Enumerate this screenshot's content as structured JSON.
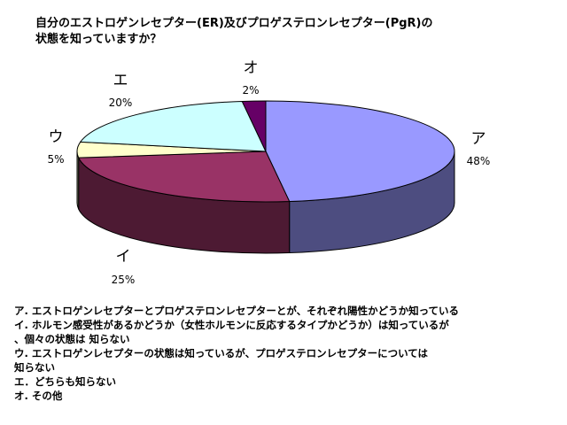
{
  "title_lines": [
    "自分のエストロゲンレセプター(ER)及びプロゲステロンレセプター(PgR)の",
    "状態を知っていますか？"
  ],
  "chart_data": {
    "type": "pie",
    "title": "自分のエストロゲンレセプター(ER)及びプロゲステロンレセプター(PgR)の状態を知っていますか？",
    "categories": [
      "ア",
      "イ",
      "ウ",
      "エ",
      "オ"
    ],
    "values": [
      48,
      25,
      5,
      20,
      2
    ],
    "value_labels": [
      "48%",
      "25%",
      "5%",
      "20%",
      "2%"
    ],
    "colors": [
      "#9999ff",
      "#993366",
      "#ffffcc",
      "#ccffff",
      "#660066"
    ],
    "side_colors": [
      "#4d4d80",
      "#4d1a33",
      "#808066",
      "#668080",
      "#330033"
    ]
  },
  "legend": {
    "lines": [
      "ア. エストロゲンレセプターとプロゲステロンレセプターとが、それぞれ陽性かどうか知っている",
      "イ. ホルモン感受性があるかどうか（女性ホルモンに反応するタイプかどうか）は知っているが",
      "、個々の状態は 知らない",
      "ウ. エストロゲンレセプターの状態は知っているが、プロゲステロンレセプターについては",
      "知らない",
      "エ．どちらも知らない",
      "オ. その他"
    ]
  }
}
